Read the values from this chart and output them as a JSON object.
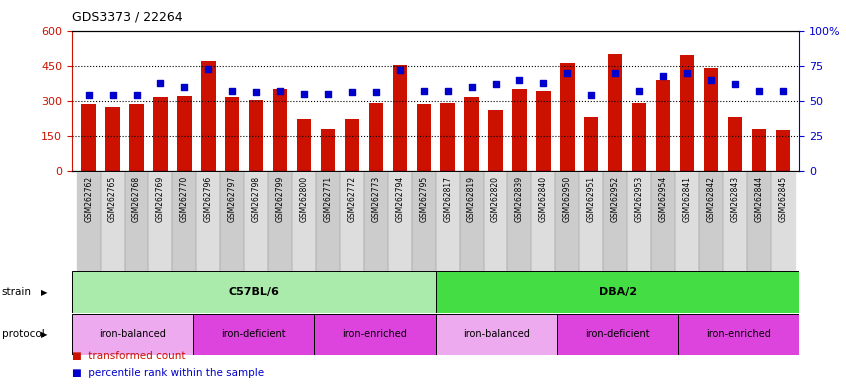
{
  "title": "GDS3373 / 22264",
  "samples": [
    "GSM262762",
    "GSM262765",
    "GSM262768",
    "GSM262769",
    "GSM262770",
    "GSM262796",
    "GSM262797",
    "GSM262798",
    "GSM262799",
    "GSM262800",
    "GSM262771",
    "GSM262772",
    "GSM262773",
    "GSM262794",
    "GSM262795",
    "GSM262817",
    "GSM262819",
    "GSM262820",
    "GSM262839",
    "GSM262840",
    "GSM262950",
    "GSM262951",
    "GSM262952",
    "GSM262953",
    "GSM262954",
    "GSM262841",
    "GSM262842",
    "GSM262843",
    "GSM262844",
    "GSM262845"
  ],
  "bar_values": [
    285,
    272,
    285,
    318,
    320,
    470,
    315,
    305,
    350,
    222,
    178,
    222,
    290,
    455,
    285,
    290,
    315,
    262,
    350,
    342,
    462,
    232,
    500,
    292,
    388,
    498,
    442,
    232,
    178,
    175
  ],
  "dot_values_pct": [
    54,
    54,
    54,
    63,
    60,
    73,
    57,
    56,
    57,
    55,
    55,
    56,
    56,
    72,
    57,
    57,
    60,
    62,
    65,
    63,
    70,
    54,
    70,
    57,
    68,
    70,
    65,
    62,
    57,
    57
  ],
  "bar_color": "#cc1100",
  "dot_color": "#0000cc",
  "ylim_left": [
    0,
    600
  ],
  "ylim_right": [
    0,
    100
  ],
  "yticks_left": [
    0,
    150,
    300,
    450,
    600
  ],
  "ytick_labels_left": [
    "0",
    "150",
    "300",
    "450",
    "600"
  ],
  "yticks_right": [
    0,
    25,
    50,
    75,
    100
  ],
  "ytick_labels_right": [
    "0",
    "25",
    "50",
    "75",
    "100%"
  ],
  "strain_groups": [
    {
      "label": "C57BL/6",
      "start": 0,
      "end": 15,
      "color": "#aaeaaa"
    },
    {
      "label": "DBA/2",
      "start": 15,
      "end": 30,
      "color": "#44dd44"
    }
  ],
  "protocol_groups": [
    {
      "label": "iron-balanced",
      "start": 0,
      "end": 5,
      "color": "#eeaaee"
    },
    {
      "label": "iron-deficient",
      "start": 5,
      "end": 10,
      "color": "#dd44dd"
    },
    {
      "label": "iron-enriched",
      "start": 10,
      "end": 15,
      "color": "#dd44dd"
    },
    {
      "label": "iron-balanced",
      "start": 15,
      "end": 20,
      "color": "#eeaaee"
    },
    {
      "label": "iron-deficient",
      "start": 20,
      "end": 25,
      "color": "#dd44dd"
    },
    {
      "label": "iron-enriched",
      "start": 25,
      "end": 30,
      "color": "#dd44dd"
    }
  ],
  "tick_bg_colors": [
    "#cccccc",
    "#dddddd"
  ],
  "legend_bar_label": "transformed count",
  "legend_dot_label": "percentile rank within the sample",
  "strain_label": "strain",
  "protocol_label": "protocol"
}
